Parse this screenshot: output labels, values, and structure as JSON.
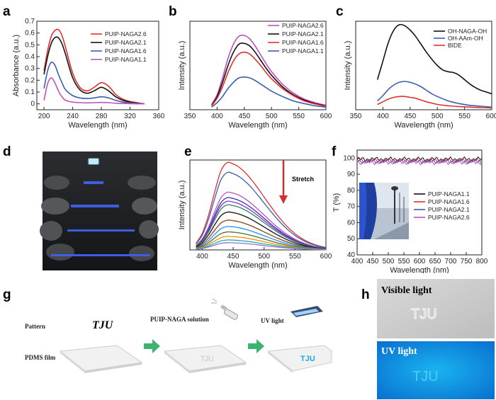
{
  "panel_letters": {
    "a": "a",
    "b": "b",
    "c": "c",
    "d": "d",
    "e": "e",
    "f": "f",
    "g": "g",
    "h": "h"
  },
  "chart_data": [
    {
      "id": "a",
      "type": "line",
      "xlabel": "Wavelength (nm)",
      "ylabel": "Absorbance (a.u.)",
      "xlim": [
        190,
        360
      ],
      "ylim": [
        -0.05,
        0.7
      ],
      "xticks": [
        200,
        240,
        280,
        320,
        360
      ],
      "yticks": [
        0.0,
        0.1,
        0.2,
        0.3,
        0.4,
        0.5,
        0.6,
        0.7
      ],
      "legend_position": "top-right",
      "series": [
        {
          "name": "PUIP-NAGA2.6",
          "color": "#e03030",
          "x": [
            200,
            205,
            210,
            215,
            220,
            225,
            230,
            240,
            250,
            260,
            270,
            280,
            290,
            300,
            310,
            320,
            330,
            340
          ],
          "y": [
            0.28,
            0.45,
            0.57,
            0.62,
            0.63,
            0.58,
            0.48,
            0.26,
            0.14,
            0.11,
            0.14,
            0.18,
            0.15,
            0.08,
            0.04,
            0.02,
            0.01,
            0.0
          ]
        },
        {
          "name": "PUIP-NAGA2.1",
          "color": "#111111",
          "x": [
            200,
            205,
            210,
            215,
            220,
            225,
            230,
            240,
            250,
            260,
            270,
            280,
            290,
            300,
            310,
            320,
            330,
            340
          ],
          "y": [
            0.25,
            0.4,
            0.51,
            0.56,
            0.56,
            0.51,
            0.42,
            0.22,
            0.12,
            0.09,
            0.11,
            0.14,
            0.11,
            0.06,
            0.03,
            0.015,
            0.005,
            0.0
          ]
        },
        {
          "name": "PUIP-NAGA1.6",
          "color": "#3a5fb0",
          "x": [
            200,
            205,
            210,
            215,
            220,
            225,
            230,
            240,
            250,
            260,
            270,
            280,
            290,
            300,
            310,
            320,
            330,
            340
          ],
          "y": [
            0.13,
            0.28,
            0.35,
            0.33,
            0.25,
            0.18,
            0.12,
            0.07,
            0.05,
            0.045,
            0.05,
            0.06,
            0.05,
            0.03,
            0.015,
            0.008,
            0.003,
            0.0
          ]
        },
        {
          "name": "PUIP-NAGA1.1",
          "color": "#c050c0",
          "x": [
            200,
            205,
            210,
            215,
            220,
            225,
            230,
            240,
            250,
            260,
            270,
            280,
            290,
            300,
            310,
            320,
            330,
            340
          ],
          "y": [
            0.03,
            0.17,
            0.22,
            0.18,
            0.11,
            0.06,
            0.03,
            0.015,
            0.01,
            0.008,
            0.01,
            0.012,
            0.01,
            0.005,
            0.003,
            0.001,
            0.0,
            0.0
          ]
        }
      ]
    },
    {
      "id": "b",
      "type": "line",
      "xlabel": "Wavelength (nm)",
      "ylabel": "Intensity (a.u.)",
      "xlim": [
        350,
        600
      ],
      "ylim": [
        0,
        1
      ],
      "xticks": [
        350,
        400,
        450,
        500,
        550,
        600
      ],
      "yticks": [],
      "legend_position": "top-right",
      "series": [
        {
          "name": "PUIP-NAGA2.6",
          "color": "#c050c0",
          "x": [
            390,
            400,
            410,
            420,
            430,
            440,
            450,
            460,
            470,
            480,
            490,
            500,
            520,
            540,
            560,
            580,
            600
          ],
          "y": [
            0.06,
            0.17,
            0.36,
            0.58,
            0.74,
            0.83,
            0.84,
            0.8,
            0.72,
            0.62,
            0.52,
            0.43,
            0.29,
            0.19,
            0.12,
            0.08,
            0.05
          ]
        },
        {
          "name": "PUIP-NAGA2.1",
          "color": "#111111",
          "x": [
            390,
            400,
            410,
            420,
            430,
            440,
            450,
            460,
            470,
            480,
            490,
            500,
            520,
            540,
            560,
            580,
            600
          ],
          "y": [
            0.05,
            0.15,
            0.31,
            0.5,
            0.65,
            0.74,
            0.75,
            0.72,
            0.65,
            0.56,
            0.47,
            0.39,
            0.26,
            0.17,
            0.11,
            0.07,
            0.045
          ]
        },
        {
          "name": "PUIP-NAGA1.6",
          "color": "#e03030",
          "x": [
            390,
            400,
            410,
            420,
            430,
            440,
            450,
            460,
            470,
            480,
            490,
            500,
            520,
            540,
            560,
            580,
            600
          ],
          "y": [
            0.045,
            0.13,
            0.26,
            0.42,
            0.55,
            0.63,
            0.65,
            0.63,
            0.57,
            0.5,
            0.42,
            0.35,
            0.24,
            0.16,
            0.1,
            0.065,
            0.04
          ]
        },
        {
          "name": "PUIP-NAGA1.1",
          "color": "#3a5fb0",
          "x": [
            390,
            400,
            410,
            420,
            430,
            440,
            450,
            460,
            470,
            480,
            490,
            500,
            520,
            540,
            560,
            580,
            600
          ],
          "y": [
            0.03,
            0.08,
            0.15,
            0.24,
            0.31,
            0.36,
            0.37,
            0.36,
            0.33,
            0.29,
            0.25,
            0.21,
            0.15,
            0.1,
            0.07,
            0.045,
            0.03
          ]
        }
      ]
    },
    {
      "id": "c",
      "type": "line",
      "xlabel": "Wavelength (nm)",
      "ylabel": "Intensity (a.u.)",
      "xlim": [
        350,
        600
      ],
      "ylim": [
        0,
        1
      ],
      "xticks": [
        350,
        400,
        450,
        500,
        550,
        600
      ],
      "yticks": [],
      "legend_position": "top-right",
      "series": [
        {
          "name": "OH-NAGA-OH",
          "color": "#111111",
          "x": [
            390,
            400,
            410,
            420,
            430,
            440,
            450,
            460,
            470,
            480,
            490,
            500,
            510,
            520,
            530,
            540,
            550,
            560,
            570,
            580,
            590,
            600
          ],
          "y": [
            0.34,
            0.55,
            0.76,
            0.9,
            0.96,
            0.95,
            0.9,
            0.83,
            0.74,
            0.65,
            0.57,
            0.5,
            0.45,
            0.43,
            0.42,
            0.39,
            0.34,
            0.29,
            0.25,
            0.22,
            0.2,
            0.18
          ]
        },
        {
          "name": "OH-AAm-OH",
          "color": "#3a5fb0",
          "x": [
            390,
            400,
            410,
            420,
            430,
            440,
            450,
            460,
            470,
            480,
            490,
            500,
            520,
            540,
            560,
            580,
            600
          ],
          "y": [
            0.1,
            0.16,
            0.23,
            0.28,
            0.31,
            0.32,
            0.31,
            0.29,
            0.26,
            0.22,
            0.18,
            0.15,
            0.1,
            0.07,
            0.05,
            0.04,
            0.03
          ]
        },
        {
          "name": "BIDE",
          "color": "#e03030",
          "x": [
            390,
            400,
            410,
            420,
            430,
            440,
            450,
            460,
            470,
            480,
            490,
            500,
            520,
            540,
            560,
            580,
            600
          ],
          "y": [
            0.06,
            0.09,
            0.12,
            0.14,
            0.15,
            0.15,
            0.14,
            0.13,
            0.11,
            0.09,
            0.075,
            0.06,
            0.045,
            0.035,
            0.03,
            0.025,
            0.02
          ]
        }
      ]
    },
    {
      "id": "e",
      "type": "line",
      "xlabel": "Wavelength (nm)",
      "ylabel": "Intensity (a.u.)",
      "xlim": [
        380,
        600
      ],
      "ylim": [
        0,
        1
      ],
      "xticks": [
        400,
        450,
        500,
        550,
        600
      ],
      "yticks": [],
      "annotation": "Stretch",
      "peak_wavelength": 440,
      "series": [
        {
          "color": "#e03030",
          "peak": 0.97
        },
        {
          "color": "#3a5fb0",
          "peak": 0.86
        },
        {
          "color": "#c050c0",
          "peak": 0.64
        },
        {
          "color": "#333399",
          "peak": 0.58
        },
        {
          "color": "#8a2be2",
          "peak": 0.54
        },
        {
          "color": "#2e8b57",
          "peak": 0.5
        },
        {
          "color": "#111111",
          "peak": 0.42
        },
        {
          "color": "#8b4513",
          "peak": 0.33
        },
        {
          "color": "#1e90ff",
          "peak": 0.26
        },
        {
          "color": "#556b2f",
          "peak": 0.2
        },
        {
          "color": "#ff8c00",
          "peak": 0.15
        },
        {
          "color": "#20b2aa",
          "peak": 0.11
        },
        {
          "color": "#9370db",
          "peak": 0.08
        }
      ]
    },
    {
      "id": "f",
      "type": "line",
      "xlabel": "Wavelength (nm)",
      "ylabel": "T (%)",
      "xlim": [
        400,
        800
      ],
      "ylim": [
        40,
        105
      ],
      "xticks": [
        400,
        450,
        500,
        550,
        600,
        650,
        700,
        750,
        800
      ],
      "yticks": [
        40,
        50,
        60,
        70,
        80,
        90,
        100
      ],
      "legend_position": "right",
      "series": [
        {
          "name": "PUIP-NAGA1.1",
          "color": "#111111",
          "level": 99.3
        },
        {
          "name": "PUIP-NAGA1.6",
          "color": "#e03030",
          "level": 98.6
        },
        {
          "name": "PUIP-NAGA2.1",
          "color": "#3a5fb0",
          "level": 98.0
        },
        {
          "name": "PUIP-NAGA2.6",
          "color": "#c050c0",
          "level": 97.4
        }
      ]
    }
  ],
  "panel_g": {
    "pattern_label": "Pattern",
    "tju_text": "TJU",
    "solution_label": "PUIP-NAGA solution",
    "uv_label": "UV light",
    "film_label": "PDMS film"
  },
  "panel_h": {
    "visible_label": "Visible light",
    "uv_label": "UV light",
    "tju_text": "TJU"
  },
  "colors": {
    "arrow_green": "#3cb371",
    "uv_blue": "#1aa8e6",
    "stretch_arrow": "#d03030"
  }
}
